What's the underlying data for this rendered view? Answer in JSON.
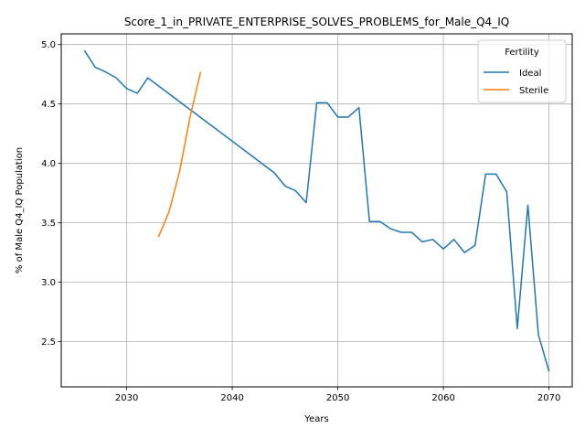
{
  "chart_data": {
    "type": "line",
    "title": "Score_1_in_PRIVATE_ENTERPRISE_SOLVES_PROBLEMS_for_Male_Q4_IQ",
    "xlabel": "Years",
    "ylabel": "% of Male Q4_IQ Population",
    "xlim": [
      2023.8,
      2072.2
    ],
    "ylim": [
      2.12,
      5.09
    ],
    "xticks": [
      2030,
      2040,
      2050,
      2060,
      2070
    ],
    "yticks": [
      2.5,
      3.0,
      3.5,
      4.0,
      4.5,
      5.0
    ],
    "xtick_labels": [
      "2030",
      "2040",
      "2050",
      "2060",
      "2070"
    ],
    "ytick_labels": [
      "2.5",
      "3.0",
      "3.5",
      "4.0",
      "4.5",
      "5.0"
    ],
    "grid": true,
    "legend": {
      "title": "Fertility",
      "position": "top-right"
    },
    "series": [
      {
        "name": "Ideal",
        "color": "#1f77b4",
        "x": [
          2026,
          2027,
          2028,
          2029,
          2030,
          2031,
          2032,
          2044,
          2045,
          2046,
          2047,
          2048,
          2049,
          2050,
          2051,
          2052,
          2053,
          2054,
          2055,
          2056,
          2057,
          2058,
          2059,
          2060,
          2061,
          2062,
          2063,
          2064,
          2065,
          2066,
          2067,
          2068,
          2069,
          2070
        ],
        "y": [
          4.95,
          4.81,
          4.77,
          4.72,
          4.63,
          4.59,
          4.72,
          3.92,
          3.81,
          3.77,
          3.67,
          4.51,
          4.51,
          4.39,
          4.39,
          4.47,
          3.51,
          3.51,
          3.45,
          3.42,
          3.42,
          3.34,
          3.36,
          3.28,
          3.36,
          3.25,
          3.31,
          3.91,
          3.91,
          3.76,
          2.61,
          3.65,
          2.56,
          2.25
        ]
      },
      {
        "name": "Sterile",
        "color": "#ff7f0e",
        "x": [
          2033,
          2034,
          2035,
          2036,
          2037
        ],
        "y": [
          3.38,
          3.59,
          3.93,
          4.39,
          4.77
        ]
      }
    ]
  }
}
